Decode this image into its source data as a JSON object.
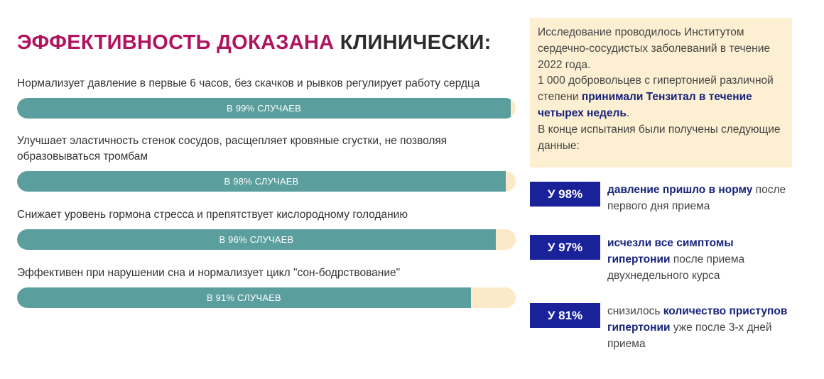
{
  "heading": {
    "accent": "ЭФФЕКТИВНОСТЬ ДОКАЗАНА",
    "rest": "КЛИНИЧЕСКИ:"
  },
  "stats": [
    {
      "text": "Нормализует давление в первые 6 часов, без скачков и рывков регулирует работу сердца",
      "label": "В 99% СЛУЧАЕВ",
      "percent": 99
    },
    {
      "text": "Улучшает эластичность стенок сосудов, расщепляет кровяные сгустки, не позволяя образовываться тромбам",
      "label": "В 98% СЛУЧАЕВ",
      "percent": 98
    },
    {
      "text": "Снижает уровень гормона стресса и препятствует кислородному голоданию",
      "label": "В 96% СЛУЧАЕВ",
      "percent": 96
    },
    {
      "text": "Эффективен при нарушении сна и нормализует цикл \"сон-бодрствование\"",
      "label": "В 91% СЛУЧАЕВ",
      "percent": 91
    }
  ],
  "study": {
    "p1": "Исследование проводилось Институтом сердечно-сосудистых заболеваний в течение 2022 года.",
    "p2_before": "1 000 добровольцев с гипертонией различной степени ",
    "p2_bold": "принимали Тензитал в течение четырех недель",
    "p2_after": ".",
    "p3": "В конце испытания были получены следующие данные:"
  },
  "results": [
    {
      "badge": "У 98%",
      "pre": "",
      "bold": "давление пришло в норму",
      "post": " после первого дня приема"
    },
    {
      "badge": "У 97%",
      "pre": "",
      "bold": "исчезли все симптомы гипертонии",
      "post": " после приема двухнедельного курса"
    },
    {
      "badge": "У 81%",
      "pre": "снизилось ",
      "bold": "количество приступов гипертонии",
      "post": " уже после 3-х дней приема"
    }
  ],
  "colors": {
    "accent": "#b1145f",
    "bar_fill": "#5b9e9e",
    "bar_track": "#fbe9c8",
    "badge": "#1a229a",
    "info_bg": "#fdefd2"
  }
}
